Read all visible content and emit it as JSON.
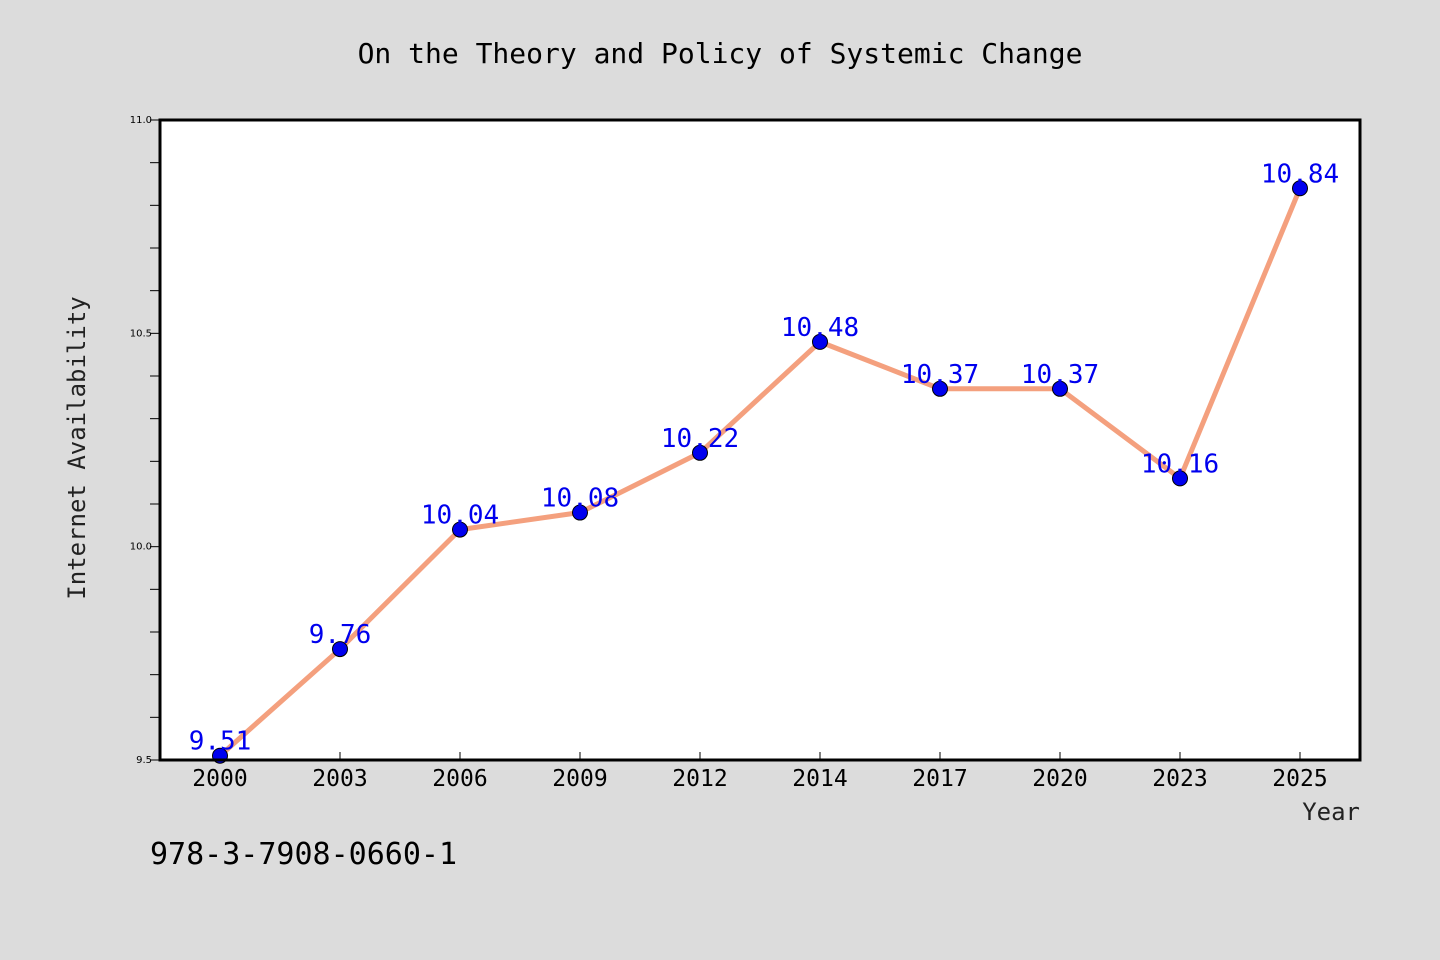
{
  "chart_data": {
    "type": "line",
    "title": "On the Theory and Policy of Systemic Change",
    "xlabel": "Year",
    "ylabel": "Internet Availability",
    "categories": [
      "2000",
      "2003",
      "2006",
      "2009",
      "2012",
      "2014",
      "2017",
      "2020",
      "2023",
      "2025"
    ],
    "series": [
      {
        "values": [
          9.51,
          9.76,
          10.04,
          10.08,
          10.22,
          10.48,
          10.37,
          10.37,
          10.16,
          10.84
        ],
        "data_labels": [
          "9.51",
          "9.76",
          "10.04",
          "10.08",
          "10.22",
          "10.48",
          "10.37",
          "10.37",
          "10.16",
          "10.84"
        ]
      }
    ],
    "ylim": [
      9.5,
      11.0
    ],
    "yticks": [
      "9.5",
      "10.0",
      "10.5",
      "11.0"
    ],
    "grid": false,
    "line_color": "#f4a07e",
    "marker_color": "#0000ee",
    "label_color": "#0000ee"
  },
  "footer": {
    "isbn": "978-3-7908-0660-1"
  }
}
